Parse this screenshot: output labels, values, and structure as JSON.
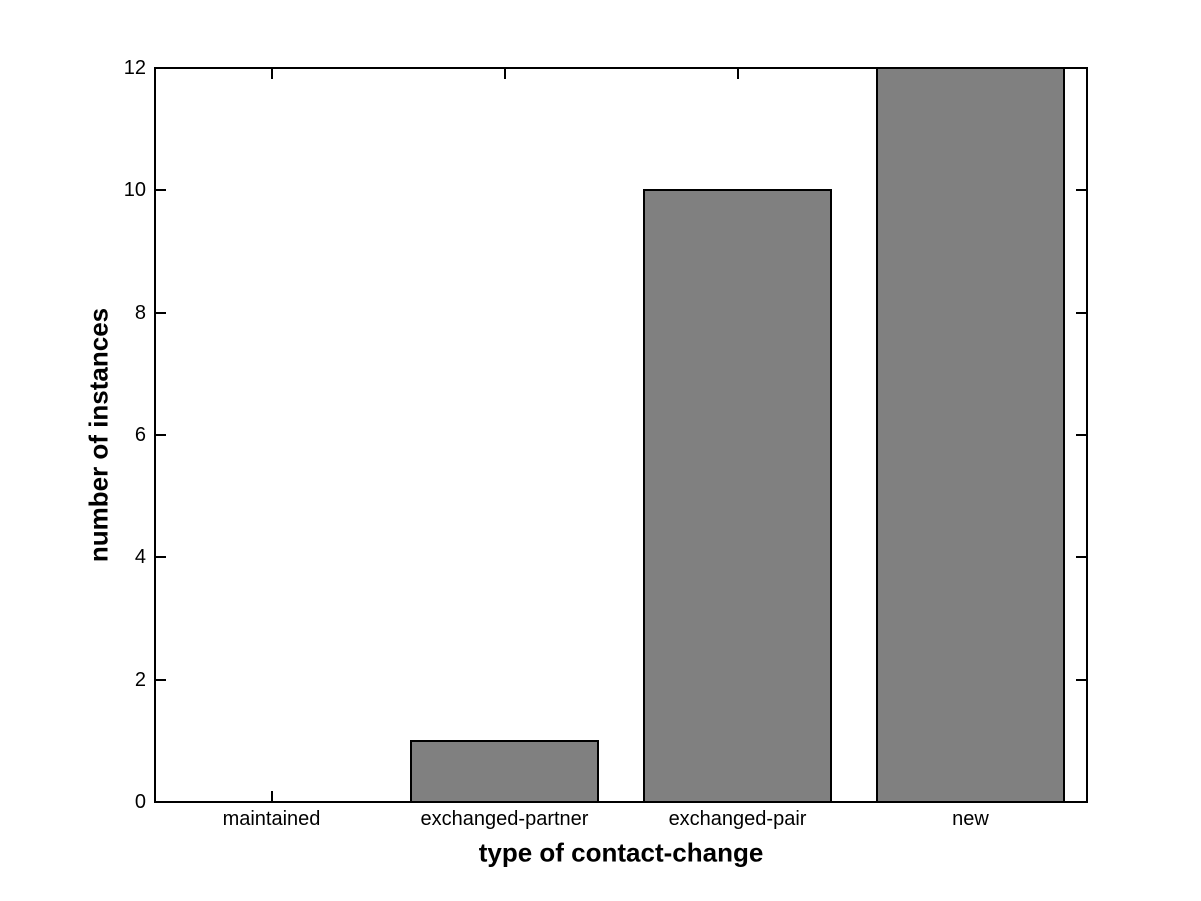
{
  "figure": {
    "background_color": "#ffffff",
    "axis_color": "#000000"
  },
  "chart_data": {
    "type": "bar",
    "title": "",
    "categories": [
      "maintained",
      "exchanged-partner",
      "exchanged-pair",
      "new"
    ],
    "values": [
      0,
      1,
      10,
      12
    ],
    "xlabel": "type of contact-change",
    "ylabel": "number of instances",
    "ylim": [
      0,
      12
    ],
    "yticks": [
      0,
      2,
      4,
      6,
      8,
      10,
      12
    ],
    "ytick_labels": [
      "0",
      "2",
      "4",
      "6",
      "8",
      "10",
      "12"
    ],
    "bar_width": 0.8,
    "bar_color": "#808080",
    "bar_edge_color": "#000000",
    "grid": false,
    "legend": null,
    "box_style": "matlab-box-on-mirrored-ticks"
  }
}
